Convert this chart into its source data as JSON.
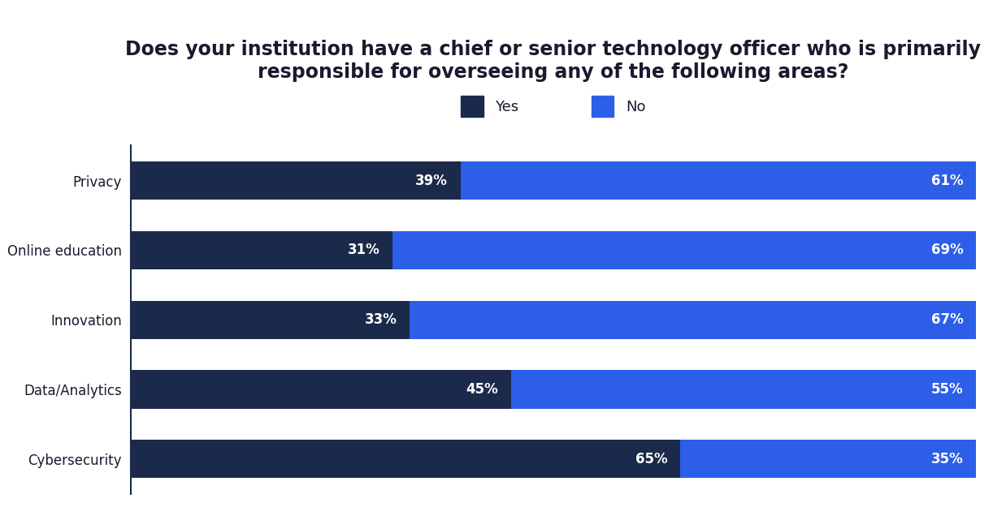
{
  "title": "Does your institution have a chief or senior technology officer who is primarily\nresponsible for overseeing any of the following areas?",
  "categories": [
    "Privacy",
    "Online education",
    "Innovation",
    "Data/Analytics",
    "Cybersecurity"
  ],
  "yes_values": [
    39,
    31,
    33,
    45,
    65
  ],
  "no_values": [
    61,
    69,
    67,
    55,
    35
  ],
  "yes_color": "#1b2a4a",
  "no_color": "#2c5ee8",
  "yes_label": "Yes",
  "no_label": "No",
  "bar_height": 0.55,
  "title_fontsize": 17,
  "label_fontsize": 12,
  "legend_fontsize": 13,
  "value_fontsize": 12,
  "background_color": "#ffffff",
  "text_color": "#1a1a2e",
  "axis_line_color": "#1a2a4a"
}
